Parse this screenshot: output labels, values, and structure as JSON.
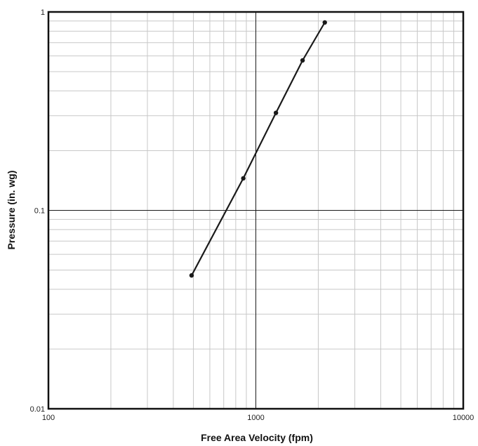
{
  "chart_data": {
    "type": "line",
    "title": "",
    "xlabel": "Free Area Velocity (fpm)",
    "ylabel": "Pressure (in. wg)",
    "x_scale": "log",
    "y_scale": "log",
    "xlim": [
      100,
      10000
    ],
    "ylim": [
      0.01,
      1
    ],
    "x_ticks": [
      {
        "value": 100,
        "label": "100"
      },
      {
        "value": 1000,
        "label": "1000"
      },
      {
        "value": 10000,
        "label": "10000"
      }
    ],
    "y_ticks": [
      {
        "value": 1,
        "label": "1"
      },
      {
        "value": 0.1,
        "label": "0.1"
      },
      {
        "value": 0.01,
        "label": "0.01"
      }
    ],
    "grid": true,
    "series": [
      {
        "color": "#1a1a1a",
        "markers": true,
        "points": [
          {
            "x": 490,
            "y": 0.047
          },
          {
            "x": 870,
            "y": 0.145
          },
          {
            "x": 1250,
            "y": 0.31
          },
          {
            "x": 1680,
            "y": 0.57
          },
          {
            "x": 2150,
            "y": 0.885
          }
        ]
      }
    ],
    "colors": {
      "major_grid": "#1a1a1a",
      "minor_grid": "#c8c8c8",
      "frame": "#111111"
    }
  }
}
